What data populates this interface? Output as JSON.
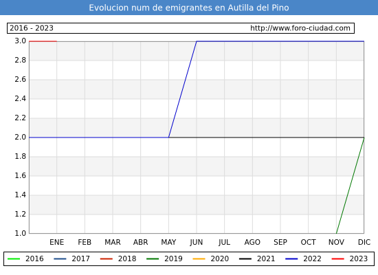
{
  "chart_data": {
    "type": "line",
    "title": "Evolucion num de emigrantes en Autilla del Pino",
    "subtitle": "2016 - 2023",
    "source": "http://www.foro-ciudad.com",
    "categories": [
      null,
      "ENE",
      "FEB",
      "MAR",
      "ABR",
      "MAY",
      "JUN",
      "JUL",
      "AGO",
      "SEP",
      "OCT",
      "NOV",
      "DIC"
    ],
    "ylim": [
      1,
      3
    ],
    "yticks": [
      {
        "value": 1,
        "label": "1.0"
      },
      1.2,
      1.4,
      1.6,
      1.8,
      {
        "value": 2,
        "label": "2.0"
      },
      2.2,
      2.4,
      2.6,
      2.8,
      {
        "value": 3,
        "label": "3.0"
      }
    ],
    "grid": true,
    "legend": "bottom",
    "series": [
      {
        "name": "2016",
        "color": "#00ee00",
        "values": [
          null,
          null,
          null,
          null,
          null,
          null,
          null,
          null,
          null,
          null,
          null,
          null,
          null
        ]
      },
      {
        "name": "2017",
        "color": "#1f4e8c",
        "values": [
          null,
          null,
          null,
          null,
          null,
          null,
          null,
          null,
          null,
          null,
          null,
          null,
          null
        ]
      },
      {
        "name": "2018",
        "color": "#cc2200",
        "values": [
          null,
          null,
          null,
          null,
          null,
          null,
          null,
          null,
          null,
          null,
          null,
          null,
          null
        ]
      },
      {
        "name": "2019",
        "color": "#007700",
        "values": [
          null,
          null,
          null,
          null,
          null,
          null,
          null,
          null,
          null,
          null,
          null,
          1,
          2
        ]
      },
      {
        "name": "2020",
        "color": "#ffaa00",
        "values": [
          null,
          null,
          null,
          null,
          null,
          null,
          null,
          null,
          null,
          null,
          null,
          null,
          null
        ]
      },
      {
        "name": "2021",
        "color": "#000000",
        "values": [
          2,
          2,
          2,
          2,
          2,
          2,
          2,
          2,
          2,
          2,
          2,
          2,
          2
        ]
      },
      {
        "name": "2022",
        "color": "#0000cc",
        "values": [
          2,
          2,
          2,
          2,
          2,
          2,
          3,
          3,
          3,
          3,
          3,
          3,
          3
        ]
      },
      {
        "name": "2023",
        "color": "#ff0000",
        "values": [
          3,
          3,
          null,
          null,
          null,
          null,
          null,
          null,
          null,
          null,
          null,
          null,
          null
        ]
      }
    ]
  }
}
